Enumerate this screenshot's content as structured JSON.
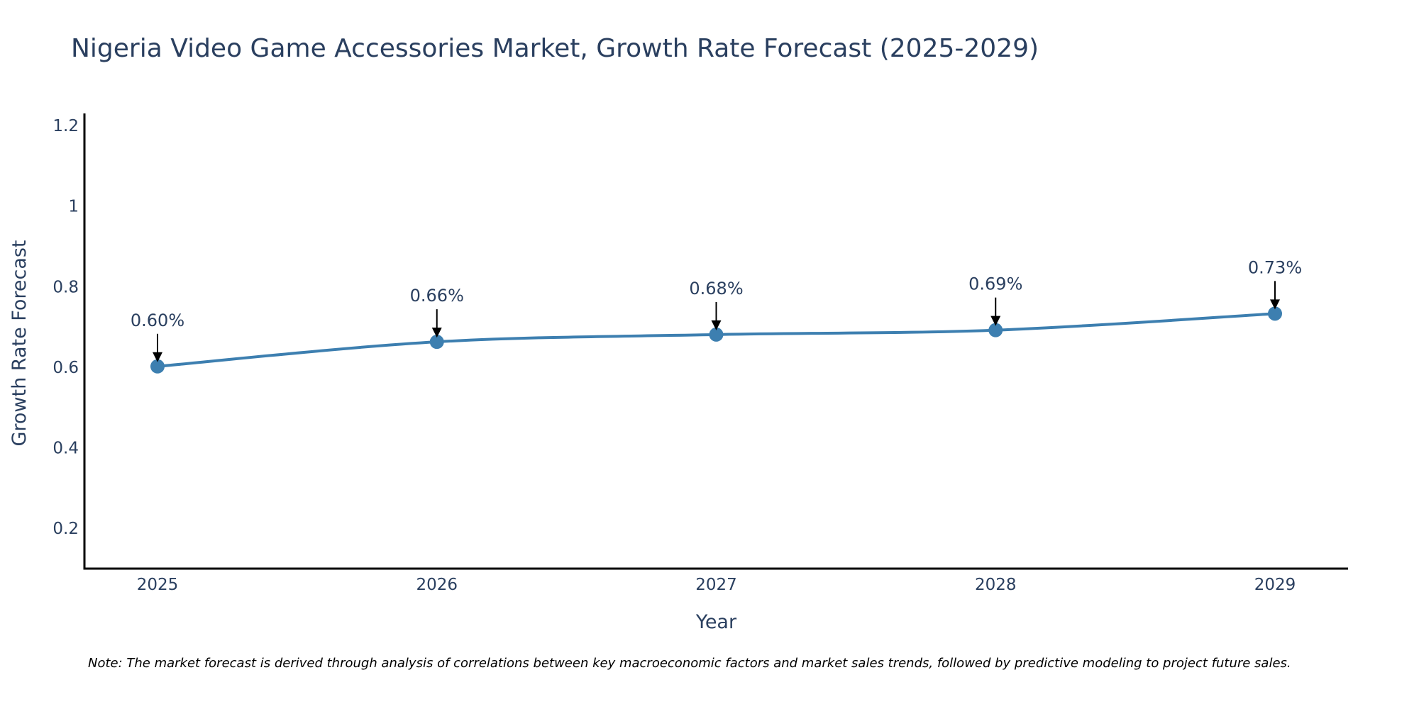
{
  "chart_data": {
    "type": "line",
    "title": "Nigeria Video Game Accessories Market, Growth Rate Forecast (2025-2029)",
    "xlabel": "Year",
    "ylabel": "Growth Rate Forecast",
    "categories": [
      "2025",
      "2026",
      "2027",
      "2028",
      "2029"
    ],
    "series": [
      {
        "name": "Growth Rate Forecast",
        "values": [
          0.602,
          0.663,
          0.681,
          0.692,
          0.733
        ],
        "labels": [
          "0.60%",
          "0.66%",
          "0.68%",
          "0.69%",
          "0.73%"
        ]
      }
    ],
    "ylim": [
      0.1,
      1.23
    ],
    "yticks": [
      0.2,
      0.4,
      0.6,
      0.8,
      1,
      1.2
    ],
    "ytick_labels": [
      "0.2",
      "0.4",
      "0.6",
      "0.8",
      "1",
      "1.2"
    ],
    "grid": false,
    "line_color": "#3d7fb0",
    "marker_color": "#3d7fb0",
    "annotation_color": "#000000"
  },
  "note": "Note: The market forecast is derived through analysis of correlations between key macroeconomic factors and market sales trends, followed by predictive modeling to project future sales."
}
